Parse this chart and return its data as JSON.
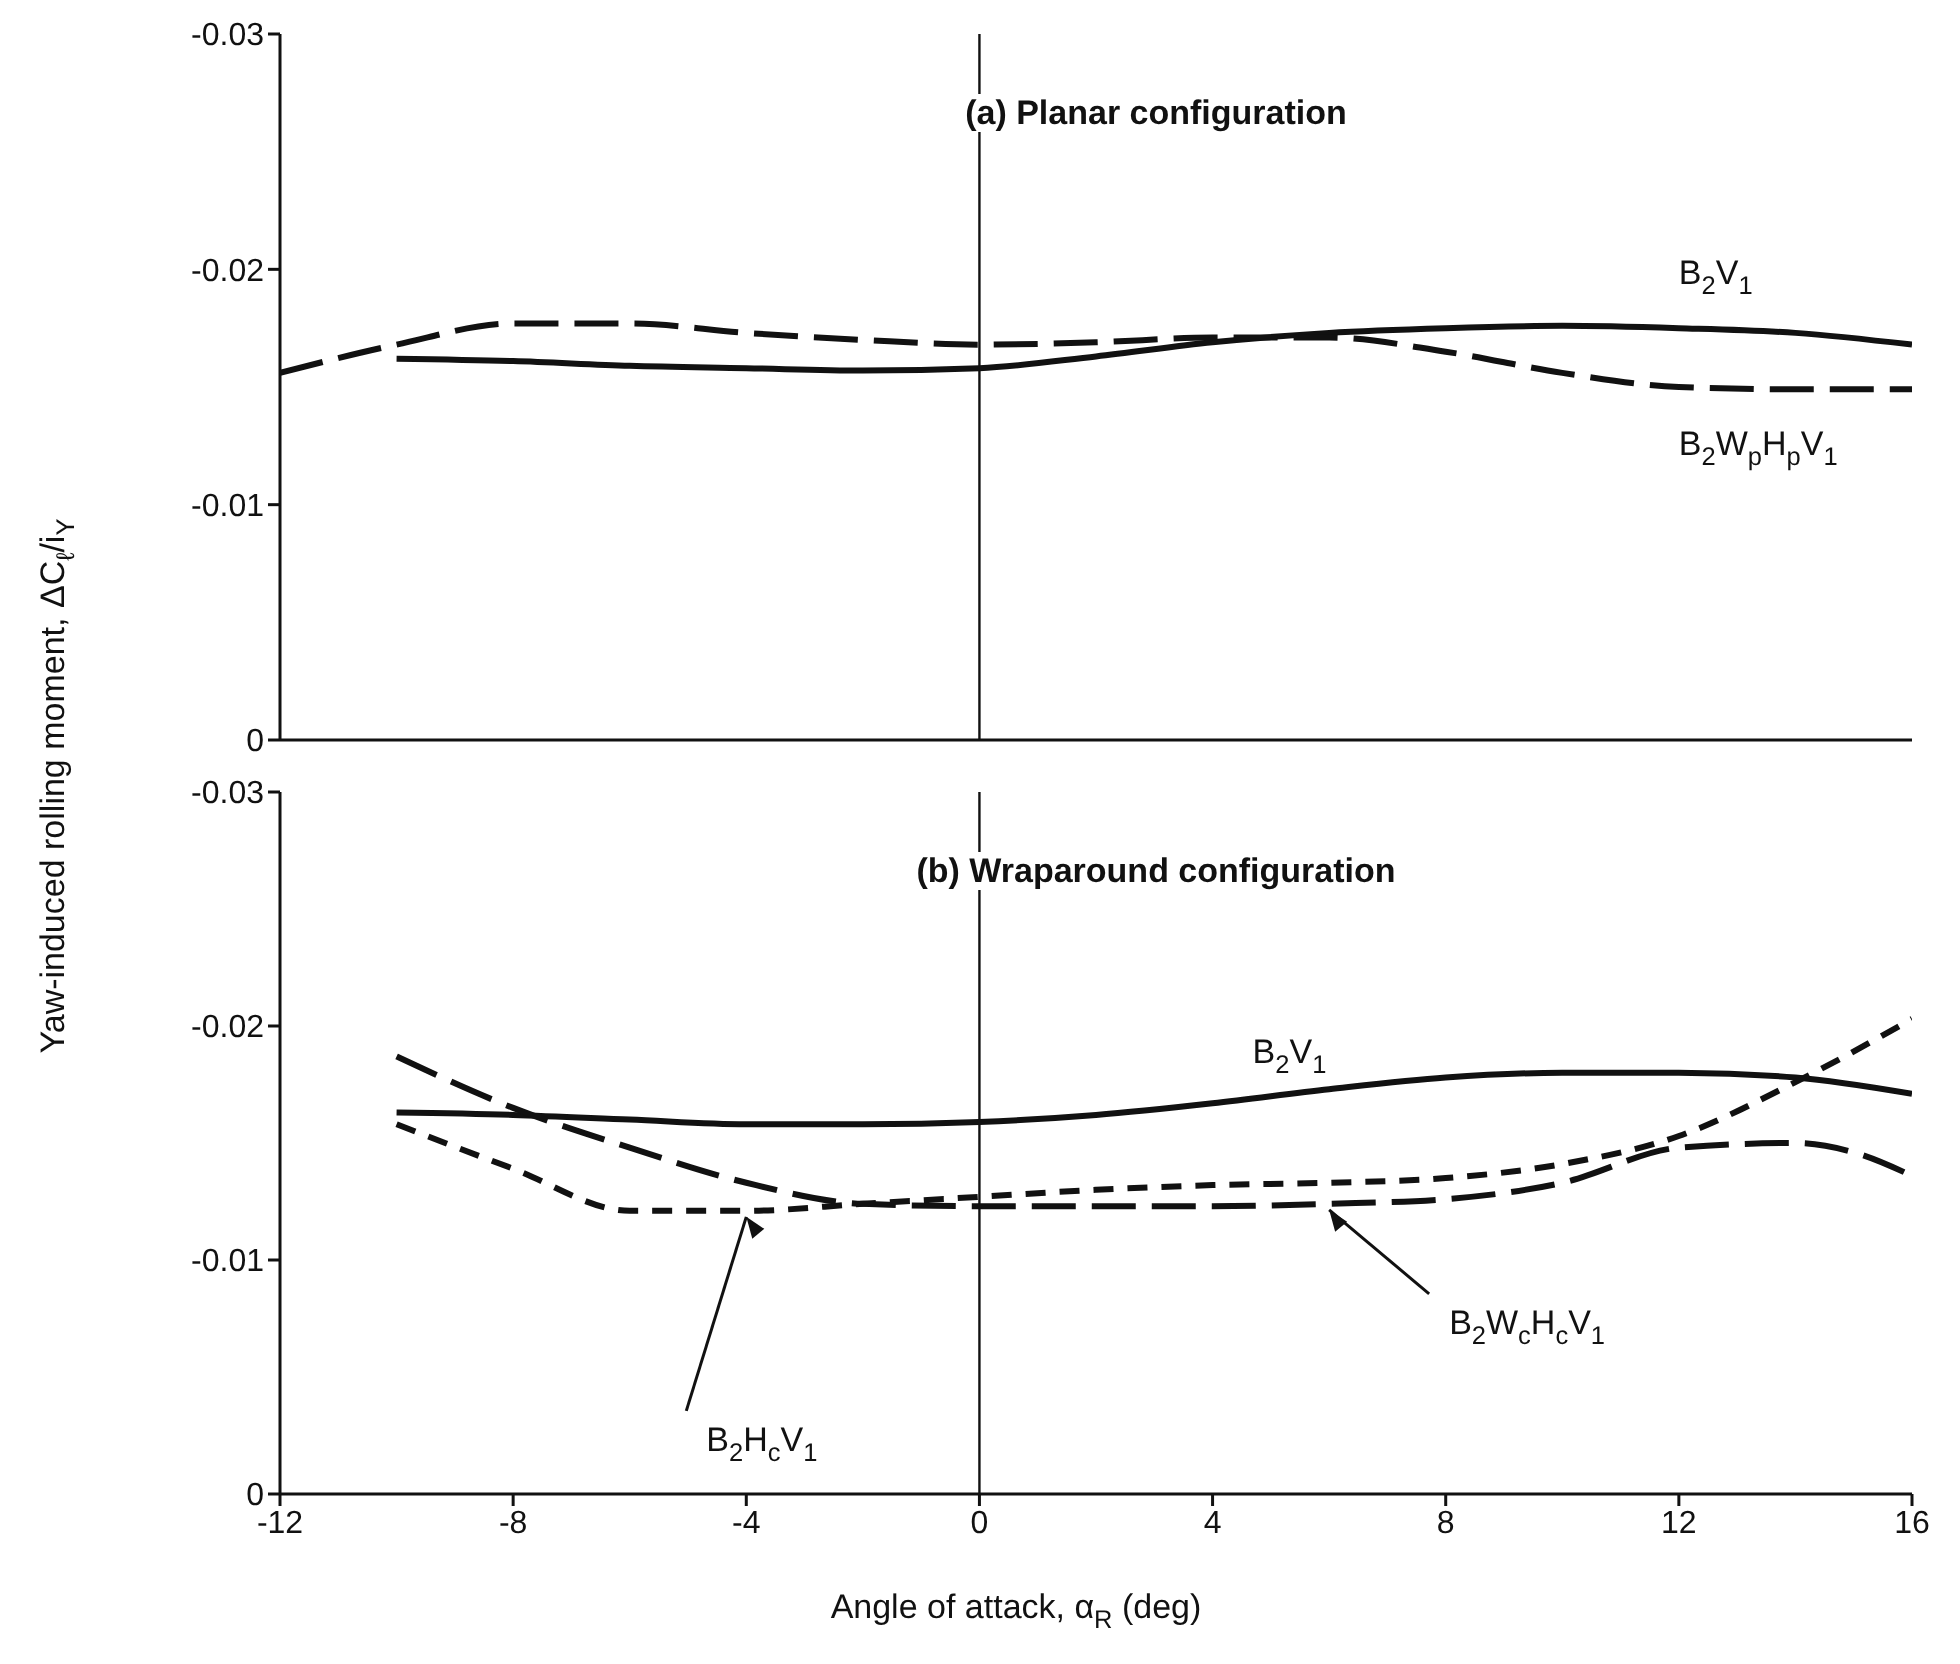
{
  "chart_data": [
    {
      "type": "line",
      "title": "(a) Planar configuration",
      "ylabel": "Yaw-induced rolling moment, ΔC$_{ℓ}$/i$_{Y}$",
      "xlim": [
        -12,
        16
      ],
      "xticks": [
        -12,
        -8,
        -4,
        0,
        4,
        8,
        12,
        16
      ],
      "ylim": [
        0,
        -0.03
      ],
      "yticks": [
        0,
        -0.01,
        -0.02,
        -0.03
      ],
      "tick_labels": "y",
      "ref_lines": [
        {
          "axis": "x",
          "value": 0
        }
      ],
      "series": [
        {
          "name": "B$_{2}$V$_{1}$",
          "color": "#111111",
          "line_style": "solid",
          "x": [
            -10,
            -8,
            -6,
            -4,
            -2,
            0,
            2,
            4,
            6,
            8,
            10,
            12,
            14,
            16
          ],
          "values": [
            -0.0162,
            -0.0161,
            -0.0159,
            -0.0158,
            -0.0157,
            -0.0158,
            -0.0163,
            -0.0169,
            -0.0173,
            -0.0175,
            -0.0176,
            -0.0175,
            -0.0173,
            -0.0168
          ]
        },
        {
          "name": "B$_{2}$W$_{p}$H$_{p}$V$_{1}$",
          "color": "#111111",
          "line_style": "dashed",
          "x": [
            -12,
            -10,
            -8,
            -6,
            -4,
            -2,
            0,
            2,
            4,
            6,
            8,
            10,
            12,
            14,
            16
          ],
          "values": [
            -0.0156,
            -0.0168,
            -0.0177,
            -0.0177,
            -0.0173,
            -0.017,
            -0.0168,
            -0.0169,
            -0.0171,
            -0.0171,
            -0.0165,
            -0.0156,
            -0.015,
            -0.0149,
            -0.0149
          ]
        }
      ]
    },
    {
      "type": "line",
      "title": "(b) Wraparound configuration",
      "xlabel": "Angle of attack, α$_{R}$  (deg)",
      "xlim": [
        -12,
        16
      ],
      "xticks": [
        -12,
        -8,
        -4,
        0,
        4,
        8,
        12,
        16
      ],
      "ylim": [
        0,
        -0.03
      ],
      "yticks": [
        0,
        -0.01,
        -0.02,
        -0.03
      ],
      "ref_lines": [
        {
          "axis": "x",
          "value": 0
        }
      ],
      "series": [
        {
          "name": "B$_{2}$V$_{1}$",
          "color": "#111111",
          "line_style": "solid",
          "x": [
            -10,
            -8,
            -6,
            -4,
            -2,
            0,
            2,
            4,
            6,
            8,
            10,
            12,
            14,
            16
          ],
          "values": [
            -0.0163,
            -0.0162,
            -0.016,
            -0.0158,
            -0.0158,
            -0.0159,
            -0.0162,
            -0.0167,
            -0.0173,
            -0.0178,
            -0.018,
            -0.018,
            -0.0178,
            -0.0171
          ]
        },
        {
          "name": "B$_{2}$W$_{c}$H$_{c}$V$_{1}$",
          "color": "#111111",
          "line_style": "dashed",
          "x": [
            -10,
            -8,
            -6,
            -4,
            -2,
            0,
            2,
            4,
            6,
            8,
            10,
            12,
            14,
            15,
            16
          ],
          "values": [
            -0.0187,
            -0.0165,
            -0.0148,
            -0.0133,
            -0.0124,
            -0.0123,
            -0.0123,
            -0.0123,
            -0.0124,
            -0.0126,
            -0.0133,
            -0.0148,
            -0.015,
            -0.0146,
            -0.0136
          ]
        },
        {
          "name": "B$_{2}$H$_{c}$V$_{1}$",
          "color": "#111111",
          "line_style": "dashed",
          "x": [
            -10,
            -8,
            -6,
            -4,
            -2,
            0,
            2,
            4,
            6,
            8,
            10,
            12,
            14,
            16
          ],
          "values": [
            -0.0158,
            -0.0139,
            -0.0121,
            -0.0121,
            -0.0124,
            -0.0127,
            -0.013,
            -0.0132,
            -0.0133,
            -0.0135,
            -0.0141,
            -0.0153,
            -0.0176,
            -0.0203
          ]
        }
      ]
    }
  ]
}
